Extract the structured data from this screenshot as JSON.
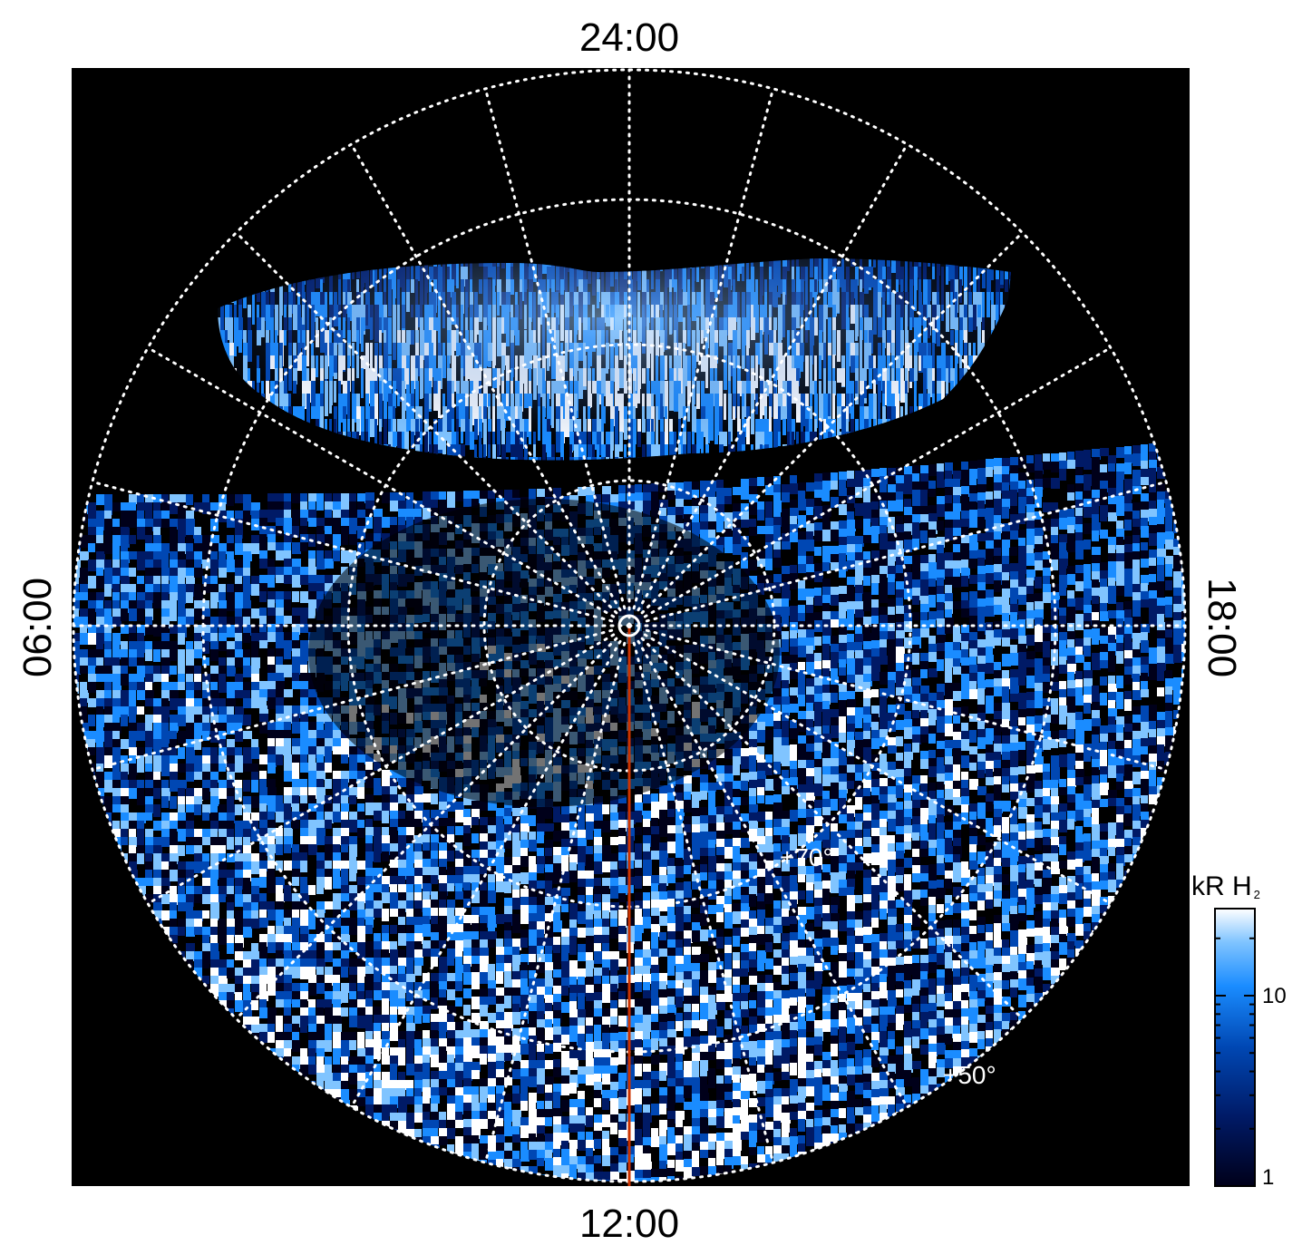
{
  "labels": {
    "top": "24:00",
    "bottom": "12:00",
    "left": "06:00",
    "right": "18:00"
  },
  "latitude_labels": {
    "inner": "+70°",
    "outer": "+50°"
  },
  "colorbar": {
    "title": "kR H",
    "subscript": "2",
    "tick_high": "10",
    "tick_low": "1",
    "scale": "log"
  },
  "colors": {
    "background": "#000000",
    "grid": "#ffffff",
    "meridian_line": "#cc3300",
    "colormap": [
      "#00001a",
      "#001a66",
      "#0047b3",
      "#1a8cff",
      "#80c4ff",
      "#ffffff"
    ]
  }
}
